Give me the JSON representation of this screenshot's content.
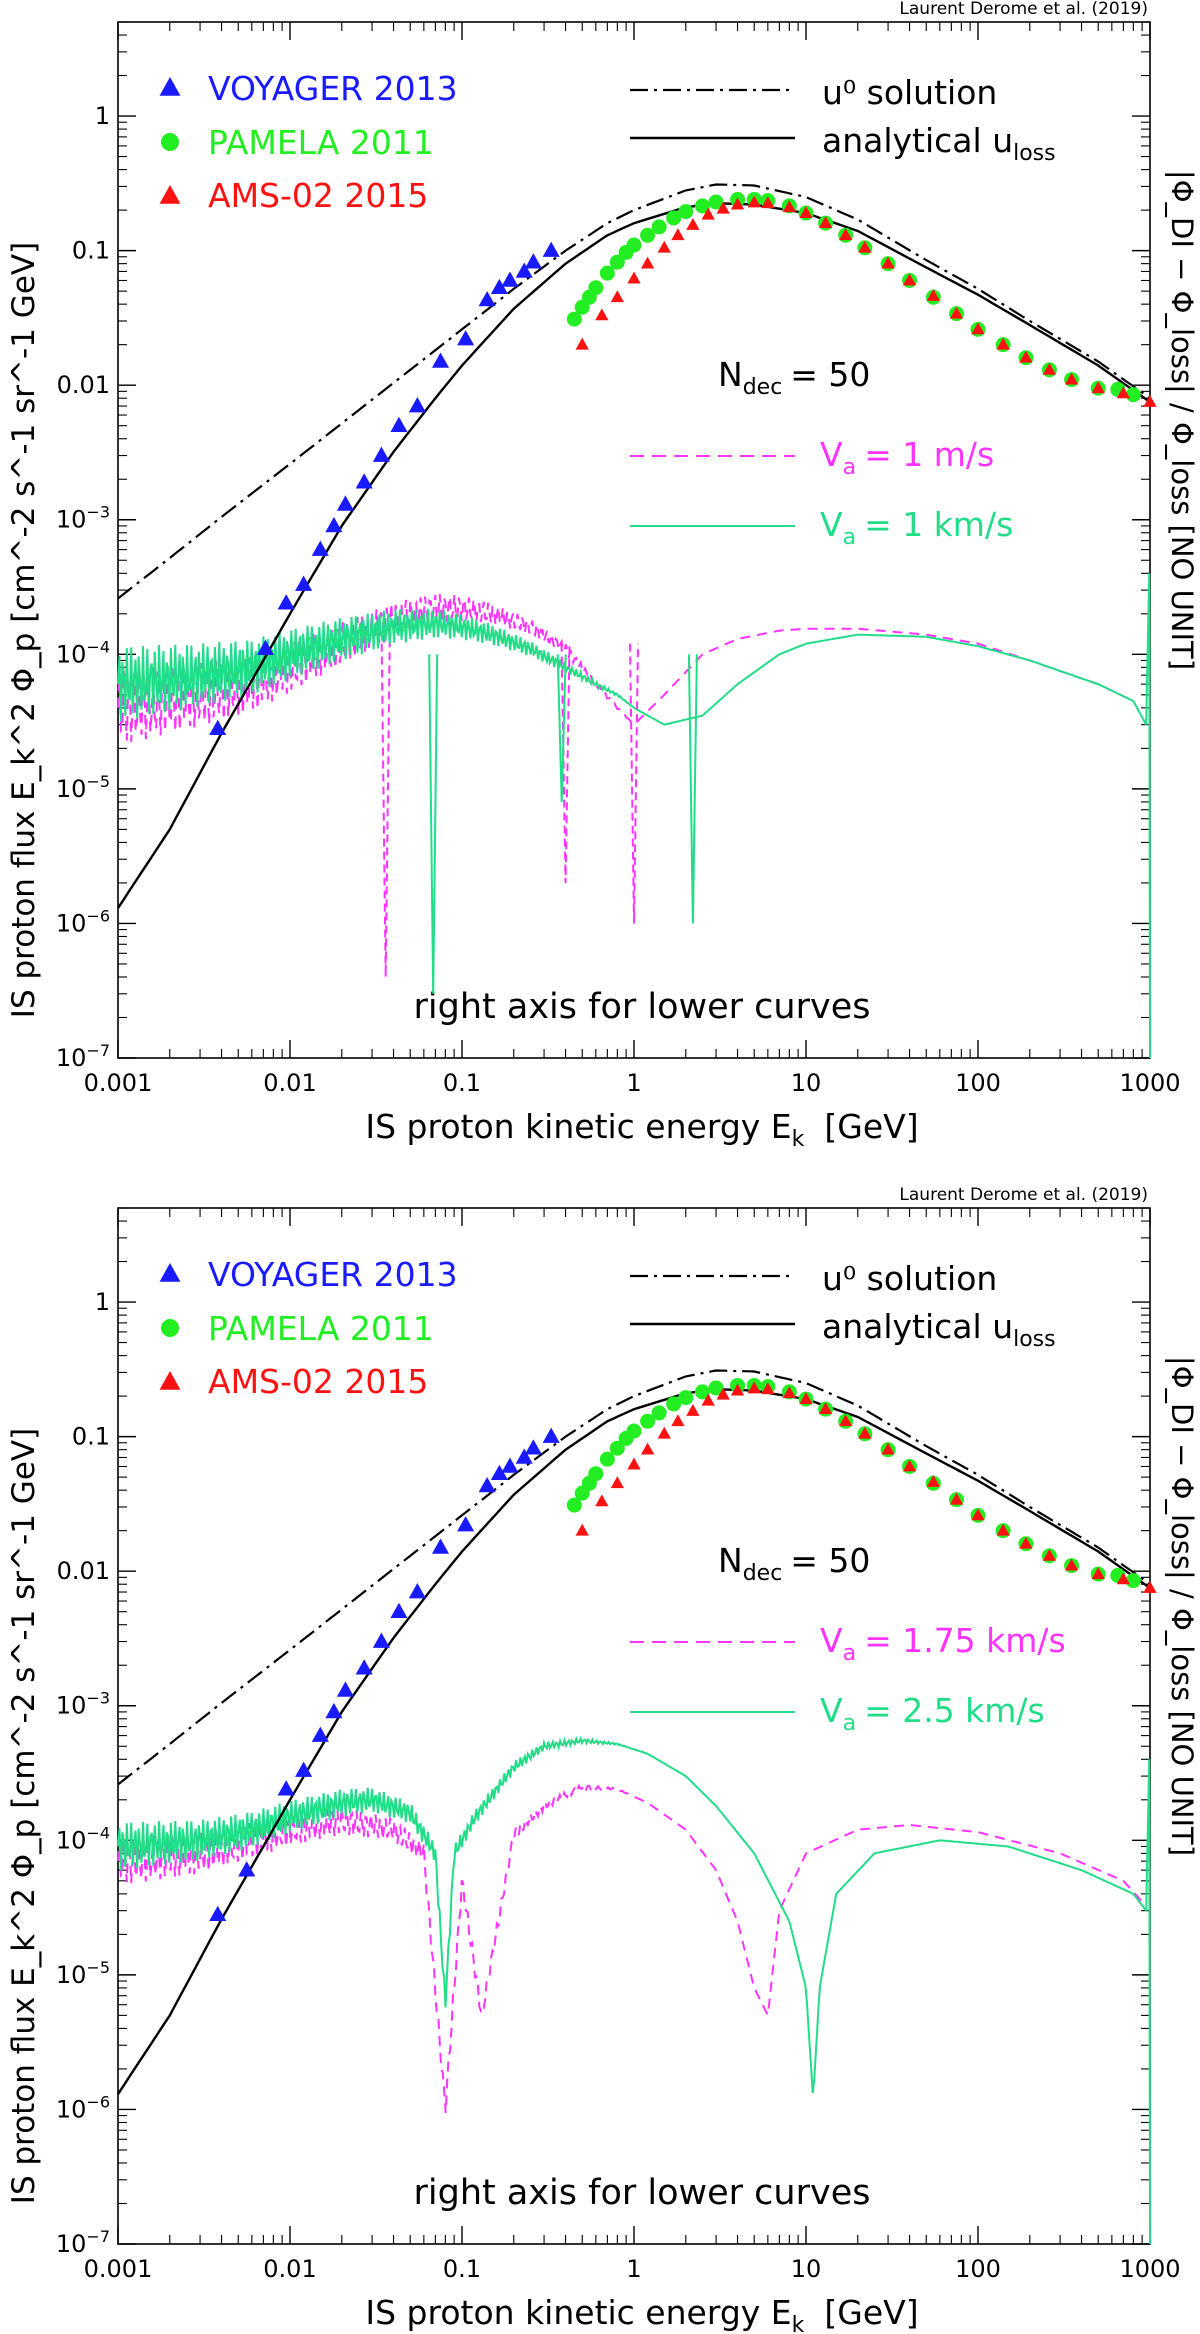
{
  "credit": "Laurent Derome et al. (2019)",
  "axes": {
    "xlabel_main": "IS proton kinetic energy E",
    "xlabel_sub": "k",
    "xlabel_unit": "[GeV]",
    "ylabel": "IS proton flux E_k^2 Φ_p [cm^-2 s^-1 sr^-1 GeV]",
    "ylabel_right": "|Φ_DI − Φ_loss| / Φ_loss  [NO UNIT]",
    "right_axis_note": "right axis for lower curves",
    "x_ticks": [
      "0.001",
      "0.01",
      "0.1",
      "1",
      "10",
      "100",
      "1000"
    ],
    "y_ticks": [
      "10^-7",
      "10^-6",
      "10^-5",
      "10^-4",
      "10^-3",
      "0.01",
      "0.1",
      "1"
    ]
  },
  "legend": {
    "voyager": "VOYAGER 2013",
    "pamela": "PAMELA 2011",
    "ams": "AMS-02 2015",
    "u0": "u⁰ solution",
    "uloss_main": "analytical u",
    "uloss_sub": "loss",
    "ndec_main": "N",
    "ndec_sub": "dec",
    "ndec_value": "= 50"
  },
  "colors": {
    "voyager": "#1a1aff",
    "pamela": "#22ee22",
    "ams": "#ff1111",
    "dashed": "#ff33ff",
    "solid_green": "#22dd88",
    "axis": "#000000"
  },
  "chart_data": [
    {
      "type": "line",
      "panel": "top",
      "xscale": "log",
      "yscale": "log",
      "xlim": [
        0.001,
        1000
      ],
      "ylim": [
        1e-07,
        5
      ],
      "series_labels": {
        "dashed": "V = 1 m/s",
        "solid": "V = 1 km/s"
      },
      "dashed_label_main": "V",
      "dashed_label_sub": "a",
      "dashed_label_value": "= 1  m/s",
      "solid_label_main": "V",
      "solid_label_sub": "a",
      "solid_label_value": "= 1  km/s",
      "voyager": {
        "x": [
          0.0038,
          0.0072,
          0.0095,
          0.012,
          0.015,
          0.018,
          0.021,
          0.027,
          0.034,
          0.043,
          0.055,
          0.075,
          0.105,
          0.14,
          0.165,
          0.19,
          0.23,
          0.26,
          0.33
        ],
        "y": [
          2.8e-05,
          0.00011,
          0.00024,
          0.00033,
          0.0006,
          0.0009,
          0.0013,
          0.0019,
          0.003,
          0.005,
          0.007,
          0.015,
          0.022,
          0.043,
          0.053,
          0.06,
          0.07,
          0.082,
          0.1
        ]
      },
      "pamela": {
        "x": [
          0.45,
          0.5,
          0.55,
          0.6,
          0.7,
          0.8,
          0.9,
          1.0,
          1.2,
          1.4,
          1.7,
          2.0,
          2.5,
          3.0,
          4.0,
          5.0,
          6.0,
          8.0,
          10,
          13,
          17,
          22,
          30,
          40,
          55,
          75,
          100,
          140,
          190,
          260,
          350,
          500,
          650,
          800
        ],
        "y": [
          0.031,
          0.038,
          0.045,
          0.053,
          0.068,
          0.082,
          0.097,
          0.11,
          0.13,
          0.15,
          0.175,
          0.195,
          0.215,
          0.23,
          0.24,
          0.24,
          0.235,
          0.215,
          0.19,
          0.16,
          0.13,
          0.105,
          0.08,
          0.06,
          0.045,
          0.034,
          0.026,
          0.02,
          0.016,
          0.013,
          0.011,
          0.0095,
          0.0093,
          0.0085
        ]
      },
      "ams": {
        "x": [
          0.5,
          0.65,
          0.8,
          1.0,
          1.2,
          1.5,
          1.8,
          2.2,
          2.7,
          3.3,
          4.0,
          5.0,
          6.0,
          8.0,
          10,
          13,
          17,
          22,
          30,
          40,
          55,
          75,
          100,
          140,
          190,
          260,
          350,
          500,
          700,
          1000
        ],
        "y": [
          0.02,
          0.033,
          0.045,
          0.062,
          0.08,
          0.105,
          0.13,
          0.155,
          0.185,
          0.205,
          0.22,
          0.228,
          0.225,
          0.21,
          0.19,
          0.16,
          0.13,
          0.105,
          0.08,
          0.06,
          0.046,
          0.034,
          0.026,
          0.02,
          0.016,
          0.013,
          0.011,
          0.0095,
          0.0087,
          0.0075
        ]
      },
      "u0": {
        "x": [
          0.001,
          0.002,
          0.004,
          0.01,
          0.02,
          0.05,
          0.1,
          0.2,
          0.4,
          0.7,
          1,
          2,
          3,
          5,
          10,
          20,
          50,
          100,
          200,
          500,
          1000
        ],
        "y": [
          0.00026,
          0.00052,
          0.00105,
          0.0026,
          0.0052,
          0.013,
          0.026,
          0.052,
          0.1,
          0.16,
          0.2,
          0.28,
          0.31,
          0.305,
          0.25,
          0.17,
          0.085,
          0.052,
          0.03,
          0.015,
          0.008
        ]
      },
      "uloss": {
        "x": [
          0.001,
          0.002,
          0.004,
          0.007,
          0.01,
          0.02,
          0.04,
          0.07,
          0.1,
          0.2,
          0.4,
          0.7,
          1,
          2,
          3,
          5,
          10,
          20,
          50,
          100,
          200,
          500,
          1000
        ],
        "y": [
          1.3e-06,
          5e-06,
          2.6e-05,
          9e-05,
          0.0002,
          0.0009,
          0.0032,
          0.008,
          0.014,
          0.037,
          0.08,
          0.13,
          0.16,
          0.21,
          0.225,
          0.22,
          0.19,
          0.14,
          0.075,
          0.047,
          0.028,
          0.014,
          0.0075
        ]
      },
      "dashed_curve": {
        "x": [
          0.001,
          0.003,
          0.006,
          0.01,
          0.02,
          0.04,
          0.07,
          0.1,
          0.15,
          0.25,
          0.4,
          0.6,
          0.8,
          1.0,
          1.5,
          2.5,
          4,
          7,
          10,
          20,
          50,
          100,
          200,
          500,
          800,
          950
        ],
        "y": [
          4e-05,
          5e-05,
          6e-05,
          8e-05,
          0.00012,
          0.00018,
          0.00022,
          0.00022,
          0.0002,
          0.00016,
          0.00011,
          6e-05,
          4e-05,
          3e-05,
          5e-05,
          0.0001,
          0.00013,
          0.00015,
          0.000155,
          0.000155,
          0.00014,
          0.00012,
          9e-05,
          6e-05,
          4.5e-05,
          3e-05
        ]
      },
      "solid_curve": {
        "x": [
          0.001,
          0.003,
          0.006,
          0.01,
          0.02,
          0.04,
          0.07,
          0.1,
          0.15,
          0.25,
          0.4,
          0.6,
          0.8,
          1.0,
          1.5,
          2.5,
          4,
          7,
          10,
          20,
          50,
          100,
          200,
          500,
          800,
          950
        ],
        "y": [
          6e-05,
          7e-05,
          8e-05,
          0.0001,
          0.00013,
          0.00016,
          0.00017,
          0.00016,
          0.00014,
          0.00011,
          8e-05,
          6e-05,
          5e-05,
          4e-05,
          3e-05,
          3.5e-05,
          6e-05,
          0.0001,
          0.00012,
          0.00014,
          0.000135,
          0.000115,
          9e-05,
          6e-05,
          4.5e-05,
          3e-05
        ]
      },
      "dashed_dips": [
        [
          0.036,
          4e-07
        ],
        [
          0.4,
          2e-06
        ],
        [
          1.0,
          1e-06
        ]
      ],
      "solid_dips": [
        [
          0.068,
          3e-07
        ],
        [
          0.38,
          8e-06
        ],
        [
          2.2,
          1e-06
        ]
      ]
    },
    {
      "type": "line",
      "panel": "bottom",
      "xscale": "log",
      "yscale": "log",
      "xlim": [
        0.001,
        1000
      ],
      "ylim": [
        1e-07,
        5
      ],
      "series_labels": {
        "dashed": "V = 1.75 km/s",
        "solid": "V = 2.5 km/s"
      },
      "dashed_label_main": "V",
      "dashed_label_sub": "a",
      "dashed_label_value": "= 1.75 km/s",
      "solid_label_main": "V",
      "solid_label_sub": "a",
      "solid_label_value": "= 2.5 km/s",
      "voyager": {
        "x": [
          0.0038,
          0.0056,
          0.0095,
          0.012,
          0.015,
          0.018,
          0.021,
          0.027,
          0.034,
          0.043,
          0.055,
          0.075,
          0.105,
          0.14,
          0.165,
          0.19,
          0.23,
          0.26,
          0.33
        ],
        "y": [
          2.8e-05,
          6e-05,
          0.00024,
          0.00033,
          0.0006,
          0.0009,
          0.0013,
          0.0019,
          0.003,
          0.005,
          0.007,
          0.015,
          0.022,
          0.043,
          0.053,
          0.06,
          0.07,
          0.082,
          0.1
        ]
      },
      "pamela": {
        "x": [
          0.45,
          0.5,
          0.55,
          0.6,
          0.7,
          0.8,
          0.9,
          1.0,
          1.2,
          1.4,
          1.7,
          2.0,
          2.5,
          3.0,
          4.0,
          5.0,
          6.0,
          8.0,
          10,
          13,
          17,
          22,
          30,
          40,
          55,
          75,
          100,
          140,
          190,
          260,
          350,
          500,
          650,
          800
        ],
        "y": [
          0.031,
          0.038,
          0.045,
          0.053,
          0.068,
          0.082,
          0.097,
          0.11,
          0.13,
          0.15,
          0.175,
          0.195,
          0.215,
          0.23,
          0.24,
          0.24,
          0.235,
          0.215,
          0.19,
          0.16,
          0.13,
          0.105,
          0.08,
          0.06,
          0.045,
          0.034,
          0.026,
          0.02,
          0.016,
          0.013,
          0.011,
          0.0095,
          0.0093,
          0.0085
        ]
      },
      "ams": {
        "x": [
          0.5,
          0.65,
          0.8,
          1.0,
          1.2,
          1.5,
          1.8,
          2.2,
          2.7,
          3.3,
          4.0,
          5.0,
          6.0,
          8.0,
          10,
          13,
          17,
          22,
          30,
          40,
          55,
          75,
          100,
          140,
          190,
          260,
          350,
          500,
          700,
          1000
        ],
        "y": [
          0.02,
          0.033,
          0.045,
          0.062,
          0.08,
          0.105,
          0.13,
          0.155,
          0.185,
          0.205,
          0.22,
          0.228,
          0.225,
          0.21,
          0.19,
          0.16,
          0.13,
          0.105,
          0.08,
          0.06,
          0.046,
          0.034,
          0.026,
          0.02,
          0.016,
          0.013,
          0.011,
          0.0095,
          0.0087,
          0.0075
        ]
      },
      "u0": {
        "x": [
          0.001,
          0.002,
          0.004,
          0.01,
          0.02,
          0.05,
          0.1,
          0.2,
          0.4,
          0.7,
          1,
          2,
          3,
          5,
          10,
          20,
          50,
          100,
          200,
          500,
          1000
        ],
        "y": [
          0.00026,
          0.00052,
          0.00105,
          0.0026,
          0.0052,
          0.013,
          0.026,
          0.052,
          0.1,
          0.16,
          0.2,
          0.28,
          0.31,
          0.305,
          0.25,
          0.17,
          0.085,
          0.052,
          0.03,
          0.015,
          0.008
        ]
      },
      "uloss": {
        "x": [
          0.001,
          0.002,
          0.004,
          0.007,
          0.01,
          0.02,
          0.04,
          0.07,
          0.1,
          0.2,
          0.4,
          0.7,
          1,
          2,
          3,
          5,
          10,
          20,
          50,
          100,
          200,
          500,
          1000
        ],
        "y": [
          1.3e-06,
          5e-06,
          2.6e-05,
          9e-05,
          0.0002,
          0.0009,
          0.0032,
          0.008,
          0.014,
          0.037,
          0.08,
          0.13,
          0.16,
          0.21,
          0.225,
          0.22,
          0.19,
          0.14,
          0.075,
          0.047,
          0.028,
          0.014,
          0.0075
        ]
      },
      "dashed_curve": {
        "x": [
          0.001,
          0.003,
          0.006,
          0.01,
          0.02,
          0.04,
          0.06,
          0.08,
          0.1,
          0.13,
          0.2,
          0.3,
          0.5,
          0.8,
          1.2,
          2,
          3,
          4,
          5,
          6,
          7,
          10,
          20,
          40,
          100,
          300,
          700,
          900
        ],
        "y": [
          7e-05,
          8e-05,
          0.0001,
          0.00012,
          0.00014,
          0.00012,
          8e-05,
          1e-06,
          5e-05,
          5e-06,
          0.00011,
          0.00018,
          0.00025,
          0.00024,
          0.00019,
          0.00012,
          6e-05,
          2.5e-05,
          8e-06,
          5e-06,
          3e-05,
          8e-05,
          0.00012,
          0.00013,
          0.000115,
          8e-05,
          5e-05,
          3.5e-05
        ]
      },
      "solid_curve": {
        "x": [
          0.001,
          0.003,
          0.006,
          0.01,
          0.02,
          0.03,
          0.05,
          0.07,
          0.08,
          0.09,
          0.12,
          0.2,
          0.3,
          0.5,
          0.8,
          1.2,
          2,
          3,
          5,
          8,
          10,
          11,
          12,
          15,
          25,
          60,
          150,
          400,
          800,
          950
        ],
        "y": [
          9e-05,
          0.0001,
          0.00012,
          0.00015,
          0.00019,
          0.0002,
          0.00016,
          8e-05,
          6e-06,
          8e-05,
          0.00015,
          0.00035,
          0.0005,
          0.00055,
          0.00052,
          0.00044,
          0.0003,
          0.00018,
          8e-05,
          2.5e-05,
          8e-06,
          1.2e-06,
          8e-06,
          4e-05,
          8e-05,
          0.0001,
          9e-05,
          6e-05,
          4e-05,
          3e-05
        ]
      },
      "dashed_dips": [],
      "solid_dips": []
    }
  ]
}
